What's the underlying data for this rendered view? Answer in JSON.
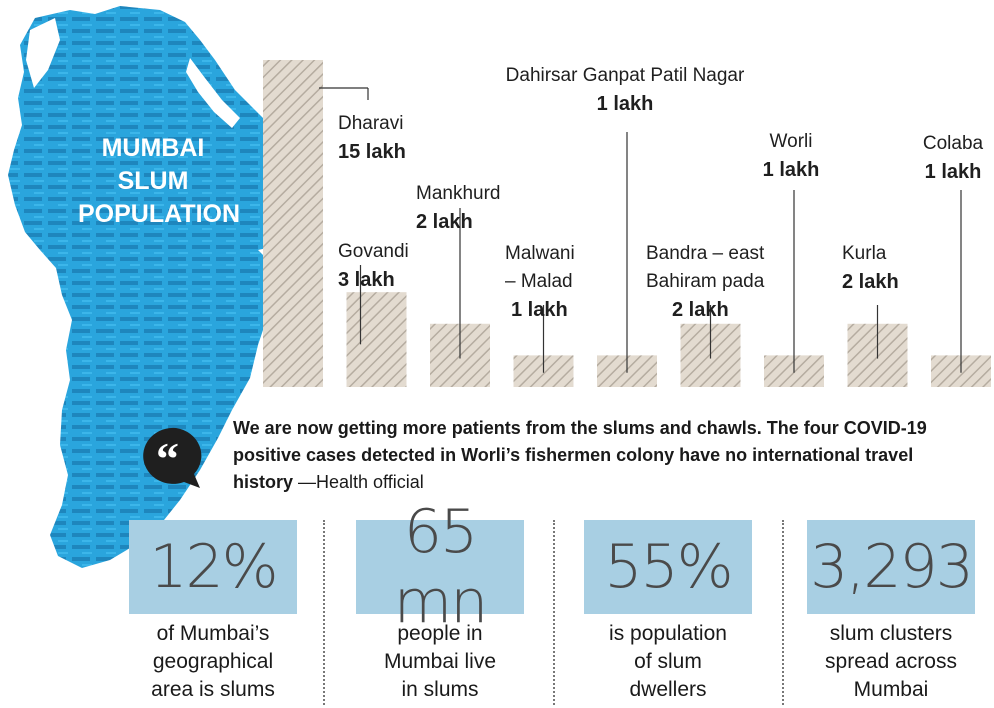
{
  "map": {
    "title_lines": [
      "MUMBAI",
      "SLUM",
      "POPULATION"
    ]
  },
  "chart_data": {
    "type": "bar",
    "categories": [
      "Dharavi",
      "Govandi",
      "Mankhurd",
      "Malwani – Malad",
      "Dahirsar Ganpat Patil Nagar",
      "Bandra – east Bahiram pada",
      "Worli",
      "Kurla",
      "Colaba"
    ],
    "labels": [
      {
        "name": "Dharavi",
        "value_text": "15 lakh"
      },
      {
        "name": "Govandi",
        "value_text": "3 lakh"
      },
      {
        "name": "Mankhurd",
        "value_text": "2 lakh"
      },
      {
        "name_lines": [
          "Malwani",
          "– Malad"
        ],
        "value_text": "1 lakh"
      },
      {
        "name": "Dahirsar Ganpat Patil Nagar",
        "value_text": "1 lakh"
      },
      {
        "name_lines": [
          "Bandra – east",
          "Bahiram pada"
        ],
        "value_text": "2 lakh"
      },
      {
        "name": "Worli",
        "value_text": "1 lakh"
      },
      {
        "name": "Kurla",
        "value_text": "2 lakh"
      },
      {
        "name": "Colaba",
        "value_text": "1 lakh"
      }
    ],
    "values": [
      15,
      3,
      2,
      1,
      1,
      2,
      1,
      2,
      1
    ],
    "unit": "lakh",
    "ylim": [
      0,
      15
    ],
    "bar_color": "#d8d0c6",
    "hatch_color": "#b5aca0"
  },
  "quote": {
    "text": "We are now getting more patients from the slums and chawls. The four COVID-19 positive cases detected in Worli’s fishermen colony have no international travel history",
    "source": " —Health official"
  },
  "stats": [
    {
      "value": "12%",
      "caption_lines": [
        "of Mumbai’s",
        "geographical",
        "area is slums"
      ]
    },
    {
      "value": "65 mn",
      "caption_lines": [
        "people in",
        "Mumbai live",
        "in slums"
      ]
    },
    {
      "value": "55%",
      "caption_lines": [
        "is population",
        "of slum",
        "dwellers"
      ]
    },
    {
      "value": "3,293",
      "caption_lines": [
        "slum clusters",
        "spread across",
        "Mumbai"
      ]
    }
  ],
  "colors": {
    "map_blue": "#2aa5dd",
    "map_dark": "#1b6fa0",
    "stat_box": "#a8cfe3",
    "text": "#1a1a1a"
  }
}
